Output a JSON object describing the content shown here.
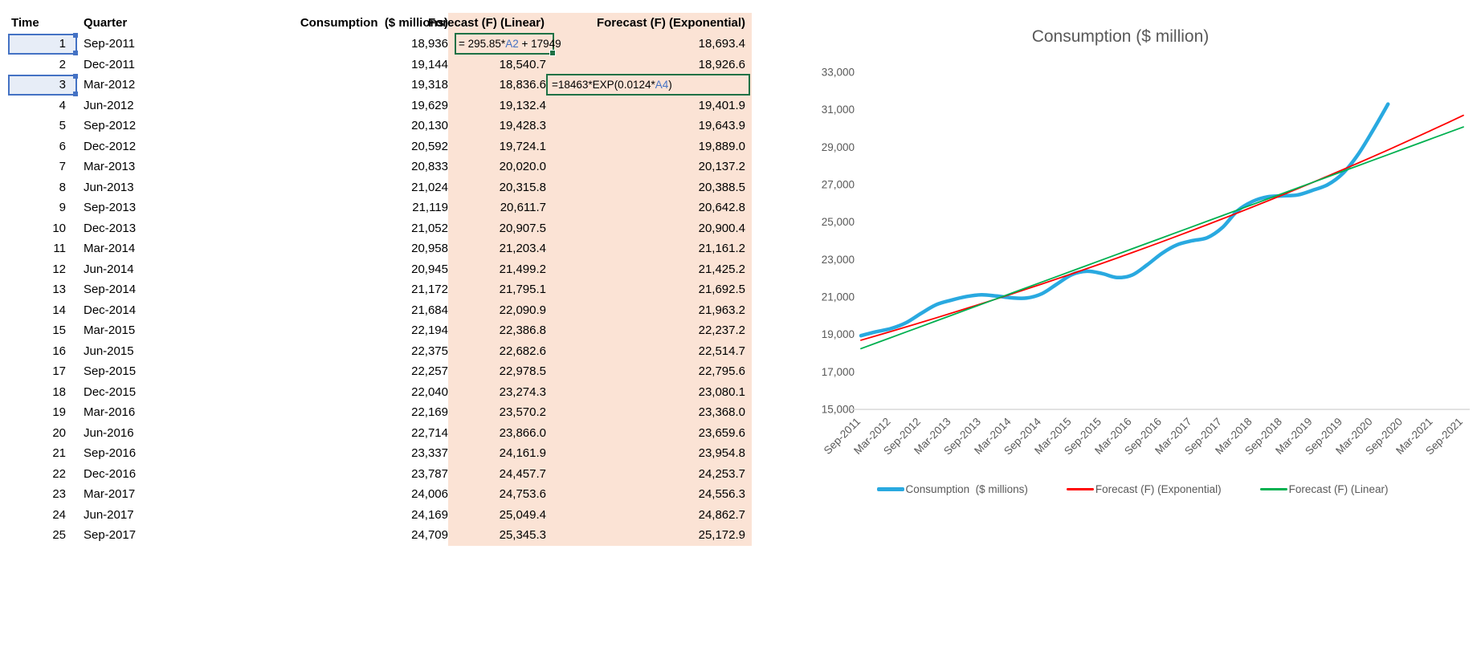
{
  "table": {
    "headers": {
      "time": "Time",
      "quarter": "Quarter",
      "consumption": "Consumption  ($ millions)",
      "linear": "Forecast (F) (Linear)",
      "exponential": "Forecast (F) (Exponential)"
    },
    "formulas": {
      "linear": {
        "prefix": "= 295.85*",
        "ref": "A2",
        "suffix": " + 17949"
      },
      "exponential": {
        "prefix": "=18463*EXP(0.0124*",
        "ref": "A4",
        "suffix": ")"
      }
    },
    "rows": [
      {
        "time": "1",
        "quarter": "Sep-2011",
        "consumption": "18,936",
        "linear": "",
        "exponential": "18,693.4",
        "time_selected": true,
        "formula_cell": "linear"
      },
      {
        "time": "2",
        "quarter": "Dec-2011",
        "consumption": "19,144",
        "linear": "18,540.7",
        "exponential": "18,926.6"
      },
      {
        "time": "3",
        "quarter": "Mar-2012",
        "consumption": "19,318",
        "linear": "18,836.6",
        "exponential": "",
        "time_selected": true,
        "formula_cell": "exponential"
      },
      {
        "time": "4",
        "quarter": "Jun-2012",
        "consumption": "19,629",
        "linear": "19,132.4",
        "exponential": "19,401.9"
      },
      {
        "time": "5",
        "quarter": "Sep-2012",
        "consumption": "20,130",
        "linear": "19,428.3",
        "exponential": "19,643.9"
      },
      {
        "time": "6",
        "quarter": "Dec-2012",
        "consumption": "20,592",
        "linear": "19,724.1",
        "exponential": "19,889.0"
      },
      {
        "time": "7",
        "quarter": "Mar-2013",
        "consumption": "20,833",
        "linear": "20,020.0",
        "exponential": "20,137.2"
      },
      {
        "time": "8",
        "quarter": "Jun-2013",
        "consumption": "21,024",
        "linear": "20,315.8",
        "exponential": "20,388.5"
      },
      {
        "time": "9",
        "quarter": "Sep-2013",
        "consumption": "21,119",
        "linear": "20,611.7",
        "exponential": "20,642.8"
      },
      {
        "time": "10",
        "quarter": "Dec-2013",
        "consumption": "21,052",
        "linear": "20,907.5",
        "exponential": "20,900.4"
      },
      {
        "time": "11",
        "quarter": "Mar-2014",
        "consumption": "20,958",
        "linear": "21,203.4",
        "exponential": "21,161.2"
      },
      {
        "time": "12",
        "quarter": "Jun-2014",
        "consumption": "20,945",
        "linear": "21,499.2",
        "exponential": "21,425.2"
      },
      {
        "time": "13",
        "quarter": "Sep-2014",
        "consumption": "21,172",
        "linear": "21,795.1",
        "exponential": "21,692.5"
      },
      {
        "time": "14",
        "quarter": "Dec-2014",
        "consumption": "21,684",
        "linear": "22,090.9",
        "exponential": "21,963.2"
      },
      {
        "time": "15",
        "quarter": "Mar-2015",
        "consumption": "22,194",
        "linear": "22,386.8",
        "exponential": "22,237.2"
      },
      {
        "time": "16",
        "quarter": "Jun-2015",
        "consumption": "22,375",
        "linear": "22,682.6",
        "exponential": "22,514.7"
      },
      {
        "time": "17",
        "quarter": "Sep-2015",
        "consumption": "22,257",
        "linear": "22,978.5",
        "exponential": "22,795.6"
      },
      {
        "time": "18",
        "quarter": "Dec-2015",
        "consumption": "22,040",
        "linear": "23,274.3",
        "exponential": "23,080.1"
      },
      {
        "time": "19",
        "quarter": "Mar-2016",
        "consumption": "22,169",
        "linear": "23,570.2",
        "exponential": "23,368.0"
      },
      {
        "time": "20",
        "quarter": "Jun-2016",
        "consumption": "22,714",
        "linear": "23,866.0",
        "exponential": "23,659.6"
      },
      {
        "time": "21",
        "quarter": "Sep-2016",
        "consumption": "23,337",
        "linear": "24,161.9",
        "exponential": "23,954.8"
      },
      {
        "time": "22",
        "quarter": "Dec-2016",
        "consumption": "23,787",
        "linear": "24,457.7",
        "exponential": "24,253.7"
      },
      {
        "time": "23",
        "quarter": "Mar-2017",
        "consumption": "24,006",
        "linear": "24,753.6",
        "exponential": "24,556.3"
      },
      {
        "time": "24",
        "quarter": "Jun-2017",
        "consumption": "24,169",
        "linear": "25,049.4",
        "exponential": "24,862.7"
      },
      {
        "time": "25",
        "quarter": "Sep-2017",
        "consumption": "24,709",
        "linear": "25,345.3",
        "exponential": "25,172.9"
      }
    ]
  },
  "chart_data": {
    "type": "line",
    "title": "Consumption ($ million)",
    "ylim": [
      15000,
      33000
    ],
    "y_tick_step": 2000,
    "x_range": [
      1,
      41
    ],
    "grid": false,
    "legend_position": "bottom",
    "x_tick_labels": [
      "Sep-2011",
      "Mar-2012",
      "Sep-2012",
      "Mar-2013",
      "Sep-2013",
      "Mar-2014",
      "Sep-2014",
      "Mar-2015",
      "Sep-2015",
      "Mar-2016",
      "Sep-2016",
      "Mar-2017",
      "Sep-2017",
      "Mar-2018",
      "Sep-2018",
      "Mar-2019",
      "Sep-2019",
      "Mar-2020",
      "Sep-2020",
      "Mar-2021",
      "Sep-2021"
    ],
    "series": [
      {
        "name": "Consumption  ($ millions)",
        "color": "#29A9E0",
        "width": 4.5,
        "smooth": true,
        "x_start": 1,
        "values": [
          18936,
          19144,
          19318,
          19629,
          20130,
          20592,
          20833,
          21024,
          21119,
          21052,
          20958,
          20945,
          21172,
          21684,
          22194,
          22375,
          22257,
          22040,
          22169,
          22714,
          23337,
          23787,
          24006,
          24169,
          24709,
          25600,
          26100,
          26350,
          26400,
          26450,
          26700,
          27000,
          27600,
          28600,
          29900,
          31300
        ]
      },
      {
        "name": "Forecast (F) (Exponential)",
        "color": "#FF0000",
        "width": 1.8,
        "smooth": false,
        "x_start": 1,
        "values": [
          18693.4,
          18926.6,
          19162.8,
          19401.9,
          19643.9,
          19889.0,
          20137.2,
          20388.5,
          20642.8,
          20900.4,
          21161.2,
          21425.2,
          21692.5,
          21963.2,
          22237.2,
          22514.7,
          22795.6,
          23080.1,
          23368.0,
          23659.6,
          23954.8,
          24253.7,
          24556.3,
          24862.7,
          25172.9,
          25487.0,
          25805.1,
          26127.2,
          26453.3,
          26783.5,
          27117.8,
          27456.3,
          27799.0,
          28145.9,
          28497.2,
          28852.9,
          29213.1,
          29577.7,
          29946.9,
          30320.7,
          30699.1
        ]
      },
      {
        "name": "Forecast (F) (Linear)",
        "color": "#00B050",
        "width": 1.8,
        "smooth": false,
        "x_start": 1,
        "values": [
          18244.9,
          18540.7,
          18836.6,
          19132.4,
          19428.3,
          19724.1,
          20020.0,
          20315.8,
          20611.7,
          20907.5,
          21203.4,
          21499.2,
          21795.1,
          22090.9,
          22386.8,
          22682.6,
          22978.5,
          23274.3,
          23570.2,
          23866.0,
          24161.9,
          24457.7,
          24753.6,
          25049.4,
          25345.3,
          25641.1,
          25937.0,
          26232.8,
          26528.7,
          26824.5,
          27120.4,
          27416.2,
          27712.1,
          28007.9,
          28303.8,
          28599.6,
          28895.5,
          29191.3,
          29487.2,
          29783.0,
          30078.9
        ]
      }
    ]
  },
  "colors": {
    "forecast_column_fill": "#FBE3D5",
    "selection_blue": "#4472C4",
    "formula_border_green": "#1E7145",
    "axis_text_gray": "#595959",
    "axis_line_gray": "#D9D9D9"
  }
}
